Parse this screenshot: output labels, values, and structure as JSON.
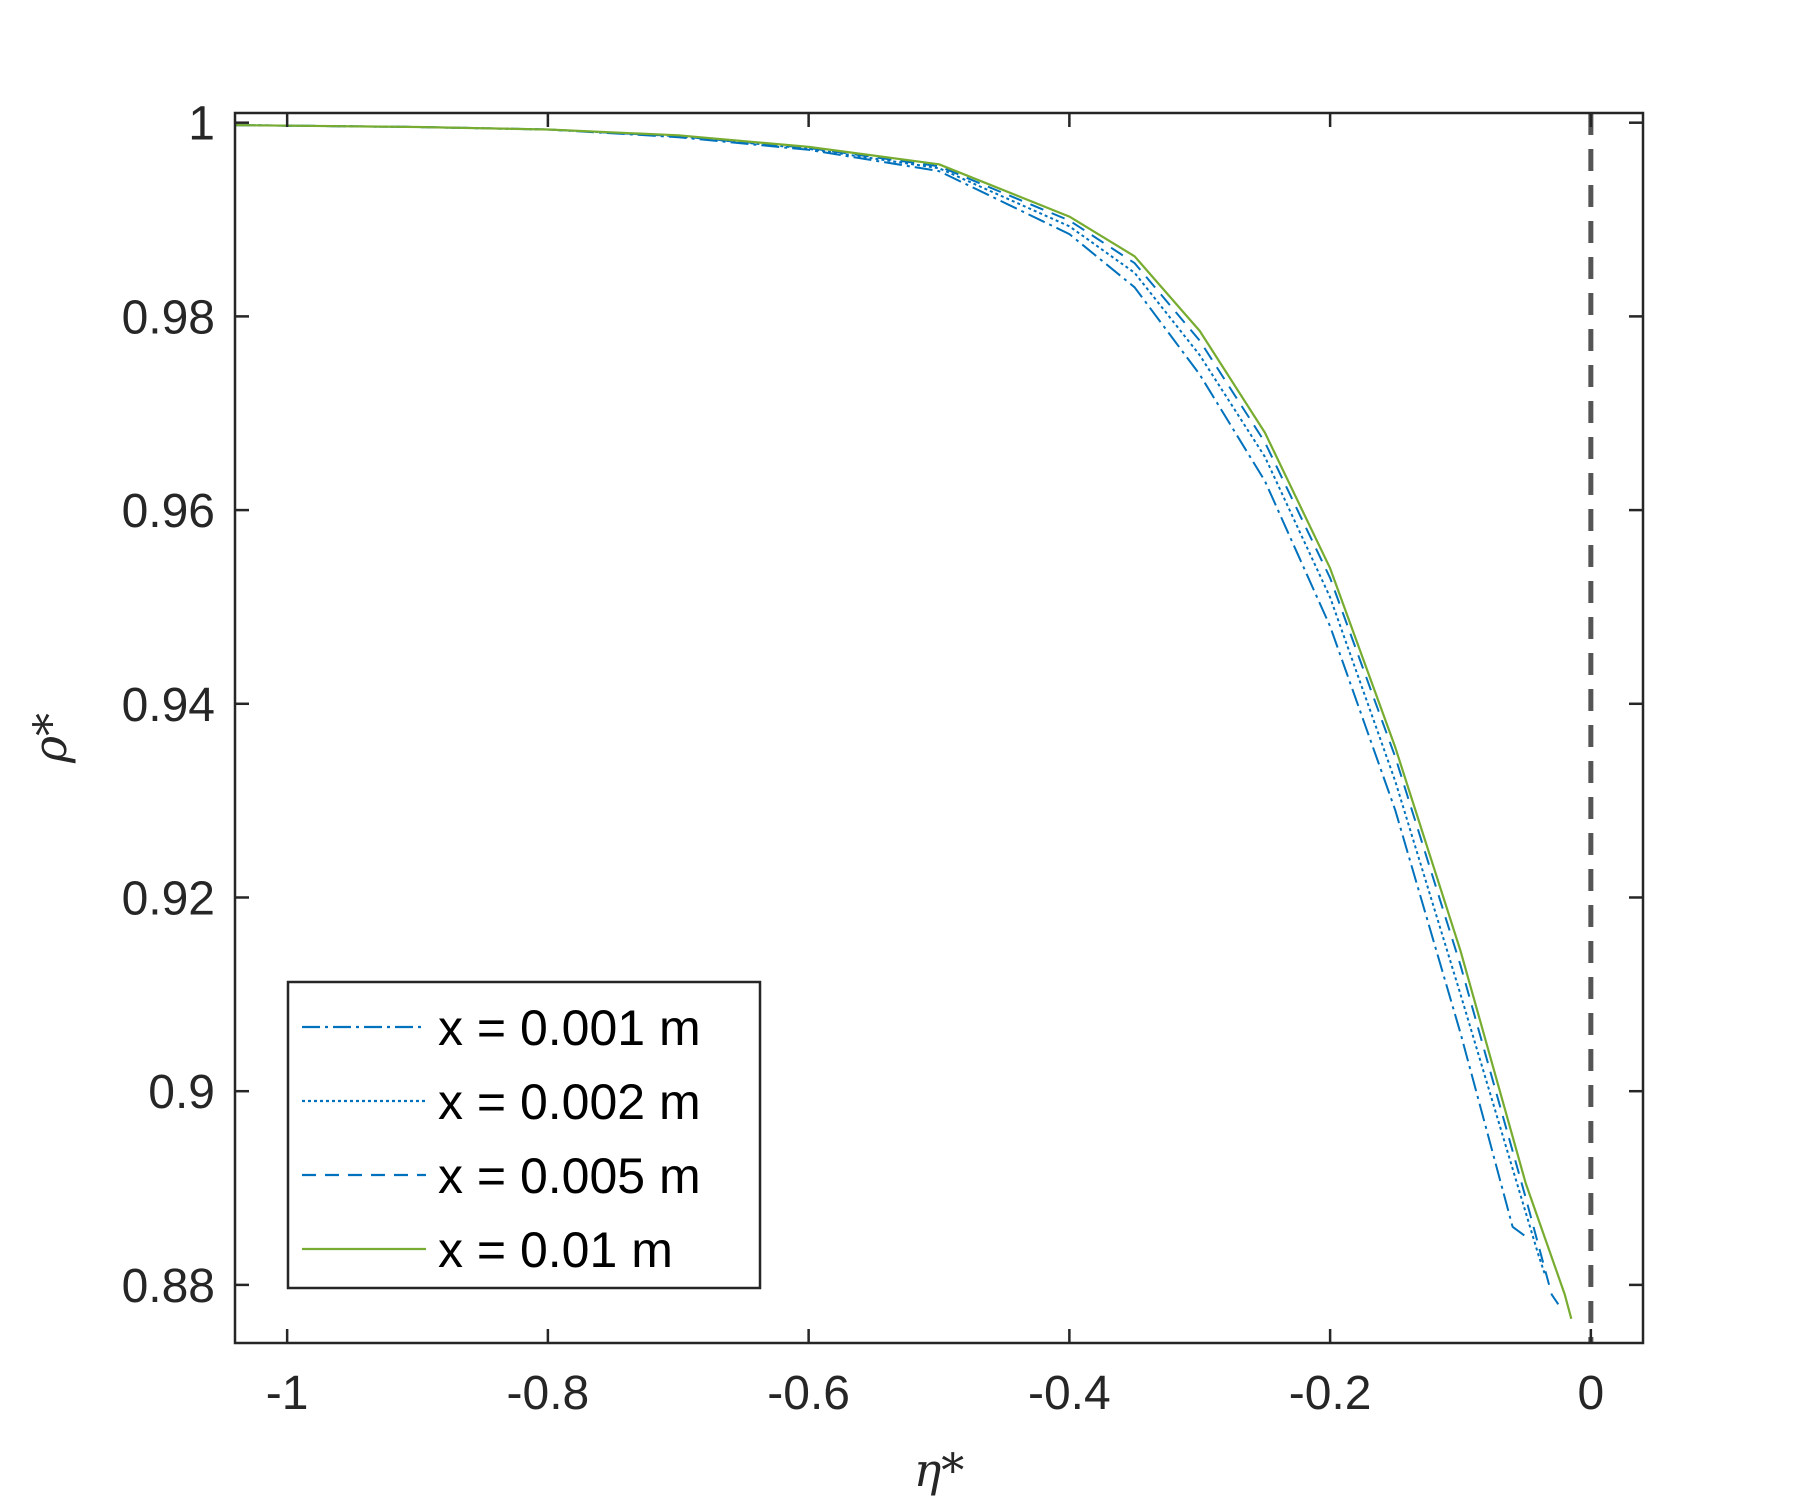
{
  "chart_data": {
    "type": "line",
    "xlabel": "η*",
    "ylabel": "ρ*",
    "xlim": [
      -1.04,
      0.04
    ],
    "ylim": [
      0.874,
      1.001
    ],
    "xticks": [
      -1,
      -0.8,
      -0.6,
      -0.4,
      -0.2,
      0
    ],
    "xtick_labels": [
      "-1",
      "-0.8",
      "-0.6",
      "-0.4",
      "-0.2",
      "0"
    ],
    "yticks": [
      0.88,
      0.9,
      0.92,
      0.94,
      0.96,
      0.98,
      1
    ],
    "ytick_labels": [
      "0.88",
      "0.9",
      "0.92",
      "0.94",
      "0.96",
      "0.98",
      "1"
    ],
    "grid": false,
    "legend_position": "bottom-left",
    "reference_line": {
      "x": 0,
      "color": "#555555",
      "style": "dashed"
    },
    "series": [
      {
        "name": "x = 0.001 m",
        "color": "#0072BD",
        "style": "dashdot",
        "x": [
          -1.04,
          -0.9,
          -0.8,
          -0.7,
          -0.6,
          -0.5,
          -0.4,
          -0.35,
          -0.3,
          -0.25,
          -0.2,
          -0.15,
          -0.1,
          -0.08,
          -0.06,
          -0.05
        ],
        "y": [
          0.99975,
          0.99955,
          0.9993,
          0.9985,
          0.9972,
          0.995,
          0.9885,
          0.983,
          0.974,
          0.963,
          0.948,
          0.929,
          0.906,
          0.896,
          0.886,
          0.885
        ]
      },
      {
        "name": "x = 0.002 m",
        "color": "#0072BD",
        "style": "dotted",
        "x": [
          -1.04,
          -0.9,
          -0.8,
          -0.7,
          -0.6,
          -0.5,
          -0.4,
          -0.35,
          -0.3,
          -0.25,
          -0.2,
          -0.15,
          -0.1,
          -0.06,
          -0.04,
          -0.035
        ],
        "y": [
          0.99975,
          0.99955,
          0.9993,
          0.9986,
          0.9973,
          0.9953,
          0.9893,
          0.9845,
          0.976,
          0.9655,
          0.951,
          0.932,
          0.91,
          0.892,
          0.883,
          0.881
        ]
      },
      {
        "name": "x = 0.005 m",
        "color": "#0072BD",
        "style": "dashed",
        "x": [
          -1.04,
          -0.9,
          -0.8,
          -0.7,
          -0.6,
          -0.5,
          -0.4,
          -0.35,
          -0.3,
          -0.25,
          -0.2,
          -0.15,
          -0.1,
          -0.05,
          -0.03,
          -0.025
        ],
        "y": [
          0.99975,
          0.99955,
          0.9993,
          0.9986,
          0.9974,
          0.9955,
          0.9899,
          0.9855,
          0.9775,
          0.967,
          0.953,
          0.9345,
          0.913,
          0.889,
          0.879,
          0.878
        ]
      },
      {
        "name": "x = 0.01 m",
        "color": "#77AC30",
        "style": "solid",
        "x": [
          -1.04,
          -0.9,
          -0.8,
          -0.7,
          -0.6,
          -0.5,
          -0.4,
          -0.35,
          -0.3,
          -0.25,
          -0.2,
          -0.15,
          -0.1,
          -0.05,
          -0.02,
          -0.015
        ],
        "y": [
          0.99975,
          0.99955,
          0.9993,
          0.9987,
          0.9975,
          0.9957,
          0.9903,
          0.9862,
          0.9785,
          0.968,
          0.954,
          0.9355,
          0.9145,
          0.8905,
          0.879,
          0.8765
        ]
      }
    ]
  }
}
